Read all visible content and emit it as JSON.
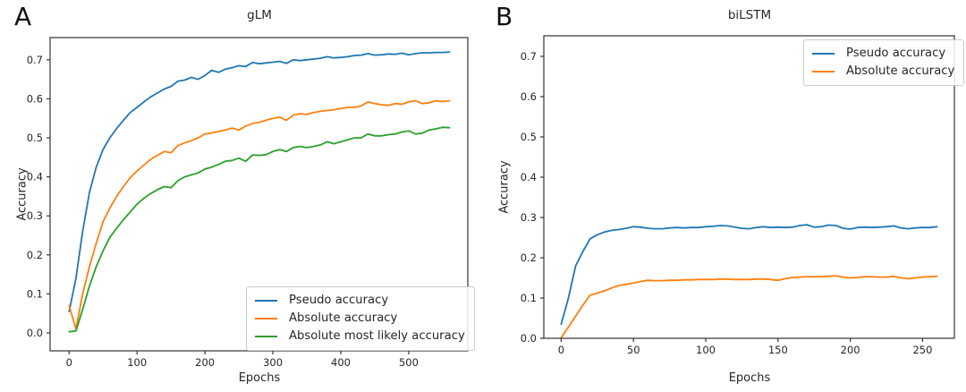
{
  "colors": {
    "background": "#ffffff",
    "axis": "#333333",
    "text": "#262626",
    "blue": "#1f77b4",
    "orange": "#ff7f0e",
    "green": "#2ca02c",
    "legend_border": "#cccccc"
  },
  "chart_data": [
    {
      "type": "line",
      "panel_letter": "A",
      "title": "gLM",
      "xlabel": "Epochs",
      "ylabel": "Accuracy",
      "xlim": [
        -28,
        587
      ],
      "ylim": [
        -0.046,
        0.757
      ],
      "xticks": [
        0,
        100,
        200,
        300,
        400,
        500
      ],
      "yticks": [
        "0.0",
        "0.1",
        "0.2",
        "0.3",
        "0.4",
        "0.5",
        "0.6",
        "0.7"
      ],
      "grid": false,
      "legend_position": "lower right",
      "series": [
        {
          "name": "Pseudo accuracy",
          "color": "#1f77b4",
          "x": [
            0,
            10,
            20,
            30,
            40,
            50,
            60,
            70,
            80,
            90,
            100,
            110,
            120,
            130,
            140,
            150,
            160,
            170,
            180,
            190,
            200,
            210,
            220,
            230,
            240,
            250,
            260,
            270,
            280,
            290,
            300,
            310,
            320,
            330,
            340,
            350,
            360,
            370,
            380,
            390,
            400,
            410,
            420,
            430,
            440,
            450,
            460,
            470,
            480,
            490,
            500,
            510,
            520,
            530,
            540,
            550,
            560
          ],
          "y": [
            0.055,
            0.14,
            0.26,
            0.36,
            0.425,
            0.47,
            0.5,
            0.524,
            0.545,
            0.565,
            0.578,
            0.592,
            0.605,
            0.615,
            0.625,
            0.632,
            0.645,
            0.648,
            0.655,
            0.65,
            0.66,
            0.673,
            0.668,
            0.676,
            0.68,
            0.685,
            0.683,
            0.693,
            0.69,
            0.692,
            0.694,
            0.696,
            0.691,
            0.7,
            0.698,
            0.7,
            0.702,
            0.704,
            0.708,
            0.705,
            0.706,
            0.708,
            0.711,
            0.712,
            0.716,
            0.712,
            0.713,
            0.715,
            0.714,
            0.717,
            0.713,
            0.716,
            0.718,
            0.718,
            0.719,
            0.719,
            0.72
          ]
        },
        {
          "name": "Absolute accuracy",
          "color": "#ff7f0e",
          "x": [
            0,
            10,
            20,
            30,
            40,
            50,
            60,
            70,
            80,
            90,
            100,
            110,
            120,
            130,
            140,
            150,
            160,
            170,
            180,
            190,
            200,
            210,
            220,
            230,
            240,
            250,
            260,
            270,
            280,
            290,
            300,
            310,
            320,
            330,
            340,
            350,
            360,
            370,
            380,
            390,
            400,
            410,
            420,
            430,
            440,
            450,
            460,
            470,
            480,
            490,
            500,
            510,
            520,
            530,
            540,
            550,
            560
          ],
          "y": [
            0.07,
            0.01,
            0.1,
            0.17,
            0.23,
            0.285,
            0.32,
            0.35,
            0.375,
            0.398,
            0.415,
            0.43,
            0.445,
            0.455,
            0.465,
            0.462,
            0.48,
            0.487,
            0.493,
            0.5,
            0.51,
            0.513,
            0.516,
            0.52,
            0.525,
            0.52,
            0.53,
            0.537,
            0.54,
            0.545,
            0.55,
            0.553,
            0.545,
            0.558,
            0.562,
            0.56,
            0.565,
            0.568,
            0.57,
            0.572,
            0.575,
            0.578,
            0.578,
            0.582,
            0.592,
            0.588,
            0.585,
            0.583,
            0.588,
            0.586,
            0.592,
            0.595,
            0.588,
            0.59,
            0.595,
            0.593,
            0.595
          ]
        },
        {
          "name": "Absolute most likely accuracy",
          "color": "#2ca02c",
          "x": [
            0,
            10,
            20,
            30,
            40,
            50,
            60,
            70,
            80,
            90,
            100,
            110,
            120,
            130,
            140,
            150,
            160,
            170,
            180,
            190,
            200,
            210,
            220,
            230,
            240,
            250,
            260,
            270,
            280,
            290,
            300,
            310,
            320,
            330,
            340,
            350,
            360,
            370,
            380,
            390,
            400,
            410,
            420,
            430,
            440,
            450,
            460,
            470,
            480,
            490,
            500,
            510,
            520,
            530,
            540,
            550,
            560
          ],
          "y": [
            0.003,
            0.005,
            0.06,
            0.12,
            0.17,
            0.21,
            0.245,
            0.268,
            0.29,
            0.31,
            0.33,
            0.345,
            0.357,
            0.367,
            0.375,
            0.372,
            0.39,
            0.4,
            0.405,
            0.41,
            0.42,
            0.425,
            0.432,
            0.44,
            0.442,
            0.448,
            0.44,
            0.456,
            0.455,
            0.457,
            0.465,
            0.47,
            0.465,
            0.475,
            0.478,
            0.475,
            0.478,
            0.482,
            0.49,
            0.485,
            0.49,
            0.495,
            0.5,
            0.5,
            0.51,
            0.505,
            0.505,
            0.508,
            0.51,
            0.515,
            0.518,
            0.51,
            0.512,
            0.52,
            0.523,
            0.527,
            0.526
          ]
        }
      ]
    },
    {
      "type": "line",
      "panel_letter": "B",
      "title": "biLSTM",
      "xlabel": "Epochs",
      "ylabel": "Accuracy",
      "xlim": [
        -12,
        272
      ],
      "ylim": [
        0,
        0.751
      ],
      "xticks": [
        0,
        50,
        100,
        150,
        200,
        250
      ],
      "yticks": [
        "0.0",
        "0.1",
        "0.2",
        "0.3",
        "0.4",
        "0.5",
        "0.6",
        "0.7"
      ],
      "grid": false,
      "legend_position": "upper right",
      "series": [
        {
          "name": "Pseudo accuracy",
          "color": "#1f77b4",
          "x": [
            0,
            5,
            10,
            15,
            20,
            25,
            30,
            35,
            40,
            45,
            50,
            55,
            60,
            65,
            70,
            75,
            80,
            85,
            90,
            95,
            100,
            105,
            110,
            115,
            120,
            125,
            130,
            135,
            140,
            145,
            150,
            155,
            160,
            165,
            170,
            175,
            180,
            185,
            190,
            195,
            200,
            205,
            210,
            215,
            220,
            225,
            230,
            235,
            240,
            245,
            250,
            255,
            260
          ],
          "y": [
            0.035,
            0.1,
            0.18,
            0.215,
            0.247,
            0.257,
            0.264,
            0.268,
            0.27,
            0.273,
            0.277,
            0.276,
            0.273,
            0.272,
            0.272,
            0.274,
            0.275,
            0.274,
            0.275,
            0.275,
            0.277,
            0.278,
            0.28,
            0.279,
            0.276,
            0.273,
            0.272,
            0.275,
            0.277,
            0.275,
            0.276,
            0.275,
            0.276,
            0.28,
            0.282,
            0.276,
            0.277,
            0.281,
            0.28,
            0.273,
            0.271,
            0.275,
            0.276,
            0.275,
            0.276,
            0.277,
            0.279,
            0.274,
            0.272,
            0.274,
            0.275,
            0.275,
            0.277
          ]
        },
        {
          "name": "Absolute accuracy",
          "color": "#ff7f0e",
          "x": [
            0,
            5,
            10,
            15,
            20,
            25,
            30,
            35,
            40,
            45,
            50,
            55,
            60,
            65,
            70,
            75,
            80,
            85,
            90,
            95,
            100,
            105,
            110,
            115,
            120,
            125,
            130,
            135,
            140,
            145,
            150,
            155,
            160,
            165,
            170,
            175,
            180,
            185,
            190,
            195,
            200,
            205,
            210,
            215,
            220,
            225,
            230,
            235,
            240,
            245,
            250,
            255,
            260
          ],
          "y": [
            0.001,
            0.028,
            0.055,
            0.082,
            0.107,
            0.112,
            0.118,
            0.125,
            0.131,
            0.134,
            0.137,
            0.141,
            0.144,
            0.143,
            0.143,
            0.144,
            0.144,
            0.145,
            0.145,
            0.146,
            0.146,
            0.146,
            0.147,
            0.147,
            0.146,
            0.146,
            0.146,
            0.147,
            0.147,
            0.146,
            0.144,
            0.148,
            0.151,
            0.152,
            0.153,
            0.153,
            0.153,
            0.154,
            0.155,
            0.152,
            0.15,
            0.151,
            0.153,
            0.153,
            0.152,
            0.152,
            0.154,
            0.15,
            0.148,
            0.15,
            0.152,
            0.153,
            0.154
          ]
        }
      ]
    }
  ]
}
